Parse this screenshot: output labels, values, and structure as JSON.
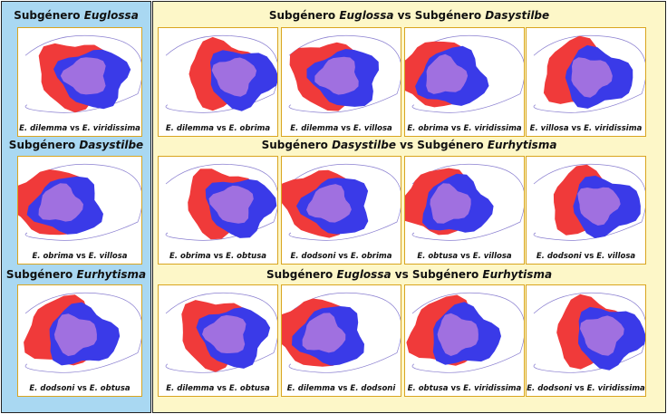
{
  "left": {
    "sections": [
      {
        "title": [
          "Subgénero ",
          "Euglossa"
        ],
        "captions": [
          [
            "E. dilemma",
            " vs ",
            "E. viridissima"
          ]
        ]
      },
      {
        "title": [
          "Subgénero ",
          "Dasystilbe"
        ],
        "captions": [
          [
            "E. obrima",
            " vs ",
            "E. villosa"
          ]
        ]
      },
      {
        "title": [
          "Subgénero ",
          "Eurhytisma"
        ],
        "captions": [
          [
            "E. dodsoni",
            " vs ",
            "E. obtusa"
          ]
        ]
      }
    ]
  },
  "right": {
    "sections": [
      {
        "title": [
          "Subgénero ",
          "Euglossa",
          " vs Subgénero ",
          "Dasystilbe"
        ],
        "captions": [
          [
            "E. dilemma",
            " vs ",
            "E. obrima"
          ],
          [
            "E. dilemma",
            " vs ",
            "E. villosa"
          ],
          [
            "E. obrima",
            " vs ",
            "E. viridissima"
          ],
          [
            "E. villosa",
            " vs ",
            "E. viridissima"
          ]
        ]
      },
      {
        "title": [
          "Subgénero ",
          "Dasystilbe",
          " vs Subgénero ",
          "Eurhytisma"
        ],
        "captions": [
          [
            "E. obrima",
            " vs ",
            "E. obtusa"
          ],
          [
            "E. dodsoni",
            " vs ",
            "E. obrima"
          ],
          [
            "E. obtusa",
            " vs ",
            "E. villosa"
          ],
          [
            "E. dodsoni",
            " vs ",
            "E. villosa"
          ]
        ]
      },
      {
        "title": [
          "Subgénero ",
          "Euglossa",
          " vs Subgénero ",
          "Eurhytisma"
        ],
        "captions": [
          [
            "E. dilemma",
            " vs ",
            "E. obtusa"
          ],
          [
            "E. dilemma",
            " vs ",
            "E. dodsoni"
          ],
          [
            "E. obtusa",
            " vs ",
            "E. viridissima"
          ],
          [
            "E. dodsoni",
            " vs ",
            "E. viridissima"
          ]
        ]
      }
    ]
  }
}
